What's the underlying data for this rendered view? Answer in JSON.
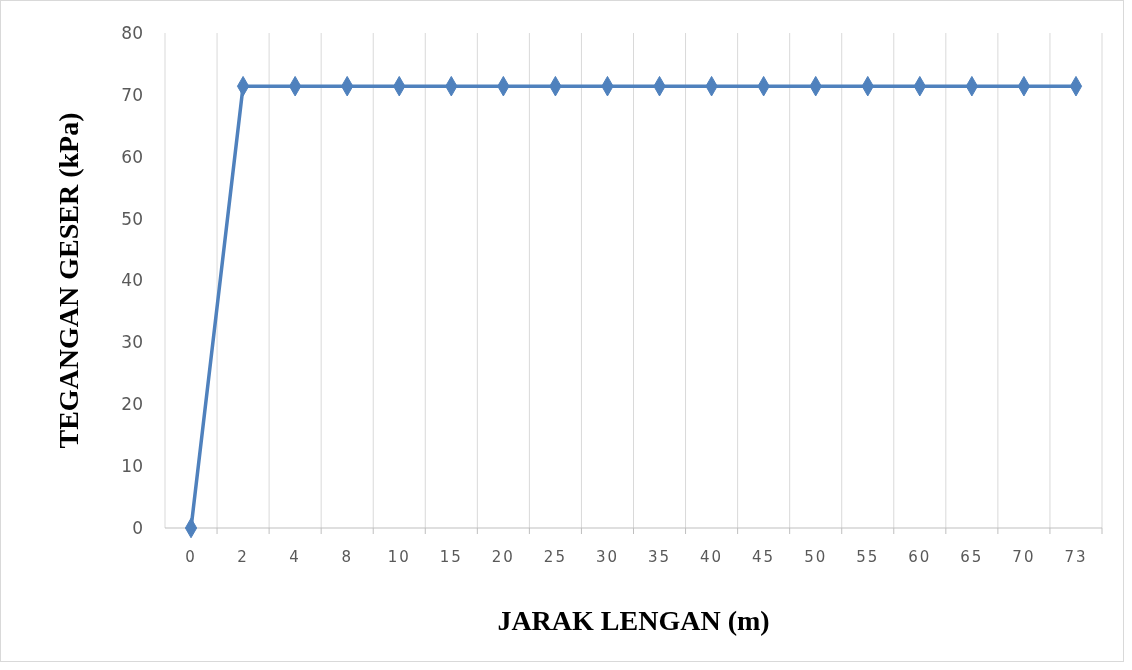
{
  "chart_data": {
    "type": "line",
    "xlabel": "JARAK LENGAN (m)",
    "ylabel": "TEGANGAN GESER (kPa)",
    "categories": [
      "0",
      "2",
      "4",
      "8",
      "10",
      "15",
      "20",
      "25",
      "30",
      "35",
      "40",
      "45",
      "50",
      "55",
      "60",
      "65",
      "70",
      "73"
    ],
    "series": [
      {
        "color": "#4f81bd",
        "values": [
          0,
          71.4,
          71.4,
          71.4,
          71.4,
          71.4,
          71.4,
          71.4,
          71.4,
          71.4,
          71.4,
          71.4,
          71.4,
          71.4,
          71.4,
          71.4,
          71.4,
          71.4
        ]
      }
    ],
    "ylim": [
      0,
      80
    ],
    "yticks": [
      0,
      10,
      20,
      30,
      40,
      50,
      60,
      70,
      80
    ],
    "grid": "x",
    "marker": "diamond",
    "line_style": "solid"
  }
}
